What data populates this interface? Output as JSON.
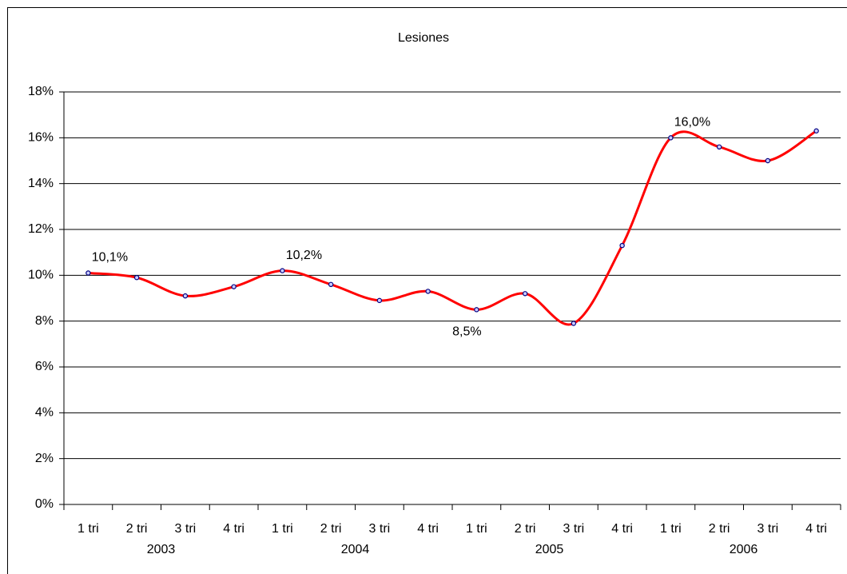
{
  "chart_data": {
    "type": "line",
    "title": "Lesiones",
    "categories": [
      "1 tri",
      "2 tri",
      "3 tri",
      "4 tri",
      "1 tri",
      "2 tri",
      "3 tri",
      "4 tri",
      "1 tri",
      "2 tri",
      "3 tri",
      "4 tri",
      "1 tri",
      "2 tri",
      "3 tri",
      "4 tri"
    ],
    "category_groups": [
      "2003",
      "2004",
      "2005",
      "2006"
    ],
    "series": [
      {
        "color": "#ff0000",
        "values": [
          10.1,
          9.9,
          9.1,
          9.5,
          10.2,
          9.6,
          8.9,
          9.3,
          8.5,
          9.2,
          7.9,
          11.3,
          16.0,
          15.6,
          15.0,
          16.3
        ],
        "value_labels": [
          "10,1%",
          null,
          null,
          null,
          "10,2%",
          null,
          null,
          null,
          "8,5%",
          null,
          null,
          null,
          "16,0%",
          null,
          null,
          null
        ]
      }
    ],
    "ylim": [
      0,
      18
    ],
    "yticks": [
      {
        "value": 0,
        "label": "0%"
      },
      {
        "value": 2,
        "label": "2%"
      },
      {
        "value": 4,
        "label": "4%"
      },
      {
        "value": 6,
        "label": "6%"
      },
      {
        "value": 8,
        "label": "8%"
      },
      {
        "value": 10,
        "label": "10%"
      },
      {
        "value": 12,
        "label": "12%"
      },
      {
        "value": 14,
        "label": "14%"
      },
      {
        "value": 16,
        "label": "16%"
      },
      {
        "value": 18,
        "label": "18%"
      }
    ],
    "grid": true,
    "smooth": true,
    "marker_color": "#000080"
  }
}
